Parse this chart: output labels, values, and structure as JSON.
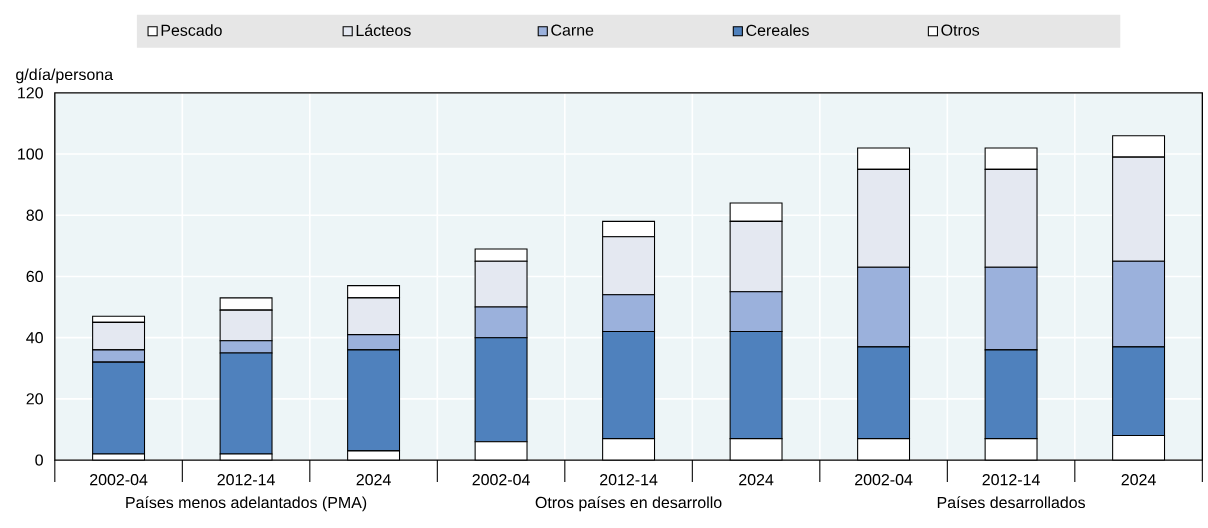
{
  "chart_data": {
    "type": "bar",
    "stacked": true,
    "ylabel": "g/día/persona",
    "categories": [
      "2002-04",
      "2012-14",
      "2024",
      "2002-04",
      "2012-14",
      "2024",
      "2002-04",
      "2012-14",
      "2024"
    ],
    "series": [
      {
        "name": "Otros",
        "color": "#ffffff",
        "values": [
          2,
          2,
          3,
          6,
          7,
          7,
          7,
          7,
          8
        ]
      },
      {
        "name": "Cereales",
        "color": "#4f81bd",
        "values": [
          30,
          33,
          33,
          34,
          35,
          35,
          30,
          29,
          29
        ]
      },
      {
        "name": "Carne",
        "color": "#9bb1dc",
        "values": [
          4,
          4,
          5,
          10,
          12,
          13,
          26,
          27,
          28
        ]
      },
      {
        "name": "Lácteos",
        "color": "#e4e8f1",
        "values": [
          9,
          10,
          12,
          15,
          19,
          23,
          32,
          32,
          34
        ]
      },
      {
        "name": "Pescado",
        "color": "#ffffff",
        "values": [
          2,
          4,
          4,
          4,
          5,
          6,
          7,
          7,
          7
        ]
      }
    ],
    "ylim": [
      0,
      120
    ],
    "yticks": [
      0,
      20,
      40,
      60,
      80,
      100,
      120
    ],
    "grid": true,
    "legend": "top",
    "annotations": [
      "Países menos adelantados (PMA)",
      "Otros países en desarrollo",
      "Países desarrollados"
    ]
  }
}
